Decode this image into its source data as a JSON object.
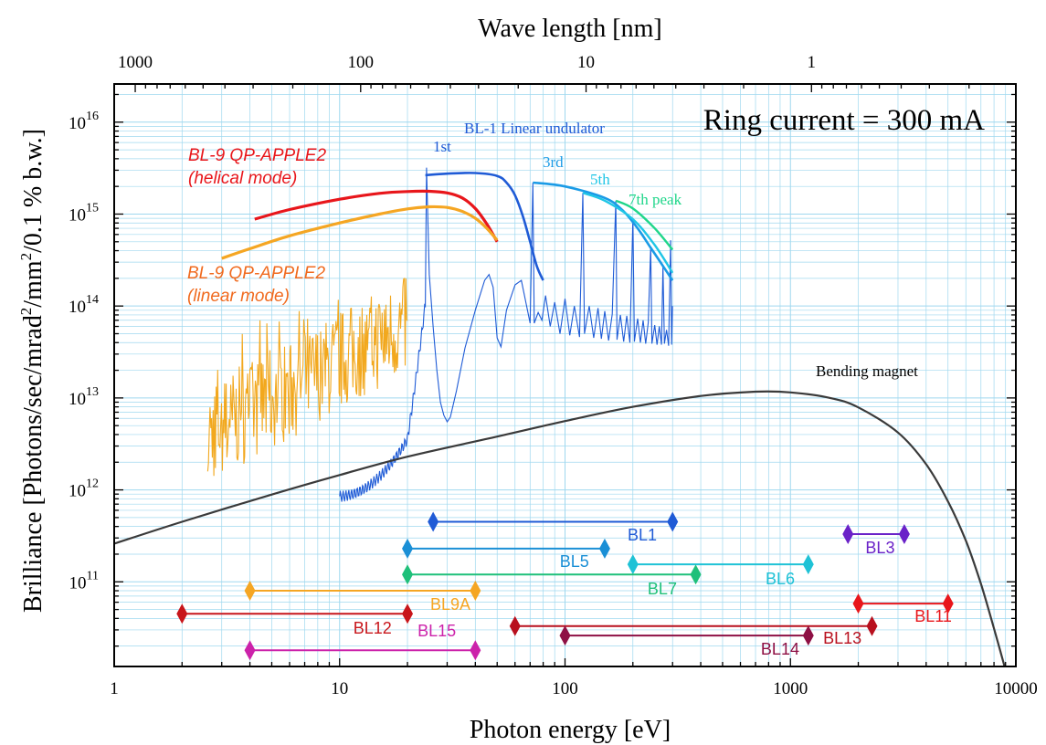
{
  "chart_data": {
    "type": "line",
    "title": "",
    "xlabel": "Photon energy [eV]",
    "ylabel": "Brilliance [Photons/sec/mrad",
    "ylabel_sup1": "2",
    "ylabel_mid": "/mm",
    "ylabel_sup2": "2",
    "ylabel_end": "/0.1 % b.w.]",
    "x2label": "Wave length [nm]",
    "xscale": "log",
    "yscale": "log",
    "xlim": [
      1,
      10000
    ],
    "ylim": [
      12000000000.0,
      2.6e+16
    ],
    "grid": true,
    "xticks": [
      {
        "value": 1,
        "label": "1"
      },
      {
        "value": 10,
        "label": "10"
      },
      {
        "value": 100,
        "label": "100"
      },
      {
        "value": 1000,
        "label": "1000"
      },
      {
        "value": 10000,
        "label": "10000"
      }
    ],
    "yticks": [
      {
        "value": 100000000000.0,
        "base": "10",
        "exp": "11"
      },
      {
        "value": 1000000000000.0,
        "base": "10",
        "exp": "12"
      },
      {
        "value": 10000000000000.0,
        "base": "10",
        "exp": "13"
      },
      {
        "value": 100000000000000.0,
        "base": "10",
        "exp": "14"
      },
      {
        "value": 1000000000000000.0,
        "base": "10",
        "exp": "15"
      },
      {
        "value": 1e+16,
        "base": "10",
        "exp": "16"
      }
    ],
    "x2ticks": [
      {
        "value": 1.24,
        "label": "1000"
      },
      {
        "value": 12.4,
        "label": "100"
      },
      {
        "value": 124,
        "label": "10"
      },
      {
        "value": 1240,
        "label": "1"
      }
    ],
    "annotations": {
      "ring_current": "Ring current = 300 mA",
      "bl1_title": "BL-1 Linear undulator",
      "h1": "1st",
      "h3": "3rd",
      "h5": "5th",
      "h7": "7th peak",
      "bending": "Bending magnet",
      "qp_helical_1": "BL-9 QP-APPLE2",
      "qp_helical_2": "(helical mode)",
      "qp_linear_1": "BL-9 QP-APPLE2",
      "qp_linear_2": "(linear mode)"
    },
    "colors": {
      "bending": "#3a3a3a",
      "helical": "#e8161b",
      "linear_smooth": "#f5a623",
      "linear_spectrum": "#f2a81e",
      "undulator_spectrum": "#1f5bd6",
      "h1": "#1f5bd6",
      "h3": "#1a9be6",
      "h5": "#1fc6e6",
      "h7": "#1fd68a",
      "grid": "#9fd8ef"
    },
    "series": [
      {
        "name": "Bending magnet",
        "key": "bending",
        "x": [
          1,
          2,
          5,
          10,
          20,
          50,
          100,
          200,
          400,
          700,
          1000,
          1500,
          2000,
          3000,
          4000,
          5000,
          6000,
          7000,
          8000,
          9000
        ],
        "y": [
          260000000000.0,
          450000000000.0,
          890000000000.0,
          1450000000000.0,
          2300000000000.0,
          3800000000000.0,
          5600000000000.0,
          8000000000000.0,
          10500000000000.0,
          11700000000000.0,
          11500000000000.0,
          10000000000000.0,
          7900000000000.0,
          4200000000000.0,
          1900000000000.0,
          750000000000.0,
          280000000000.0,
          95000000000.0,
          31000000000.0,
          11000000000.0
        ]
      },
      {
        "name": "BL-9 QP-APPLE2 (helical mode)",
        "key": "helical",
        "x": [
          4.2,
          6,
          10,
          15,
          20,
          25,
          30,
          35,
          40,
          45,
          50
        ],
        "y": [
          880000000000000.0,
          1120000000000000.0,
          1450000000000000.0,
          1680000000000000.0,
          1760000000000000.0,
          1770000000000000.0,
          1700000000000000.0,
          1500000000000000.0,
          1150000000000000.0,
          780000000000000.0,
          500000000000000.0
        ]
      },
      {
        "name": "BL-9 QP-APPLE2 (linear mode)",
        "key": "linear_smooth",
        "x": [
          3.0,
          4,
          6,
          10,
          15,
          20,
          25,
          30,
          35,
          40,
          45,
          50
        ],
        "y": [
          330000000000000.0,
          420000000000000.0,
          580000000000000.0,
          800000000000000.0,
          1000000000000000.0,
          1140000000000000.0,
          1200000000000000.0,
          1180000000000000.0,
          1070000000000000.0,
          900000000000000.0,
          700000000000000.0,
          520000000000000.0
        ]
      },
      {
        "name": "1st",
        "key": "h1",
        "x": [
          24,
          30,
          40,
          50,
          55,
          60,
          65,
          70,
          75,
          80
        ],
        "y": [
          2650000000000000.0,
          2750000000000000.0,
          2800000000000000.0,
          2600000000000000.0,
          2200000000000000.0,
          1600000000000000.0,
          950000000000000.0,
          500000000000000.0,
          270000000000000.0,
          190000000000000.0
        ]
      },
      {
        "name": "3rd",
        "key": "h3",
        "x": [
          72,
          100,
          150,
          180,
          210,
          240,
          270,
          300
        ],
        "y": [
          2200000000000000.0,
          2000000000000000.0,
          1500000000000000.0,
          1100000000000000.0,
          700000000000000.0,
          430000000000000.0,
          280000000000000.0,
          190000000000000.0
        ]
      },
      {
        "name": "5th",
        "key": "h5",
        "x": [
          120,
          150,
          200,
          250,
          300
        ],
        "y": [
          1700000000000000.0,
          1400000000000000.0,
          880000000000000.0,
          460000000000000.0,
          230000000000000.0
        ]
      },
      {
        "name": "7th peak",
        "key": "h7",
        "x": [
          168,
          200,
          250,
          300
        ],
        "y": [
          1400000000000000.0,
          1150000000000000.0,
          700000000000000.0,
          410000000000000.0
        ]
      }
    ],
    "ranges": [
      {
        "label": "BL1",
        "x1": 26,
        "x2": 300,
        "y": 450000000000.0,
        "color": "#1f5bd6",
        "label_x": 220,
        "label_y": 330000000000.0
      },
      {
        "label": "BL5",
        "x1": 20,
        "x2": 150,
        "y": 230000000000.0,
        "color": "#1a8fd6",
        "label_x": 110,
        "label_y": 170000000000.0
      },
      {
        "label": "BL6",
        "x1": 200,
        "x2": 1200,
        "y": 155000000000.0,
        "color": "#1fc2d6",
        "label_x": 900,
        "label_y": 110000000000.0
      },
      {
        "label": "BL7",
        "x1": 20,
        "x2": 380,
        "y": 120000000000.0,
        "color": "#1fc07a",
        "label_x": 270,
        "label_y": 86000000000.0
      },
      {
        "label": "BL3",
        "x1": 1800,
        "x2": 3200,
        "y": 330000000000.0,
        "color": "#6a22c8",
        "label_x": 2500,
        "label_y": 240000000000.0
      },
      {
        "label": "BL9A",
        "x1": 4,
        "x2": 40,
        "y": 80000000000.0,
        "color": "#f5a623",
        "label_x": 31,
        "label_y": 58000000000.0
      },
      {
        "label": "BL11",
        "x1": 2000,
        "x2": 5000,
        "y": 58000000000.0,
        "color": "#e8161b",
        "label_x": 4300,
        "label_y": 43000000000.0
      },
      {
        "label": "BL12",
        "x1": 2,
        "x2": 20,
        "y": 45000000000.0,
        "color": "#c8161b",
        "label_x": 14,
        "label_y": 32000000000.0
      },
      {
        "label": "BL13",
        "x1": 60,
        "x2": 2300,
        "y": 33000000000.0,
        "color": "#b8101e",
        "label_x": 1700,
        "label_y": 25000000000.0
      },
      {
        "label": "BL14",
        "x1": 100,
        "x2": 1200,
        "y": 26000000000.0,
        "color": "#8e1044",
        "label_x": 900,
        "label_y": 19000000000.0
      },
      {
        "label": "BL15",
        "x1": 4,
        "x2": 40,
        "y": 18000000000.0,
        "color": "#cc22aa",
        "label_x": 27,
        "label_y": 30000000000.0
      }
    ]
  }
}
